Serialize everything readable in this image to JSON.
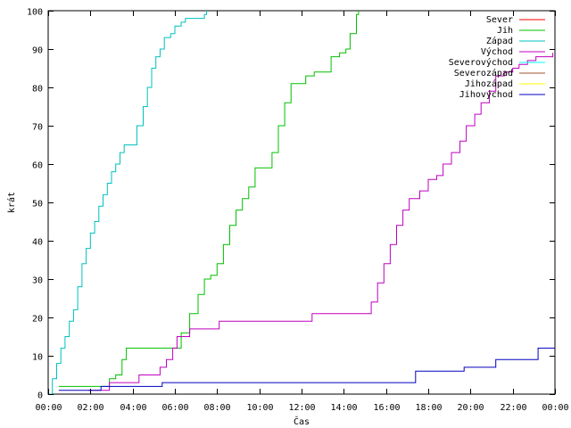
{
  "chart_data": {
    "type": "line",
    "title": "",
    "xlabel": "Čas",
    "ylabel": "krát",
    "xlim": [
      0,
      24
    ],
    "ylim": [
      0,
      100
    ],
    "x_ticks": [
      {
        "value": 0,
        "label": "00:00"
      },
      {
        "value": 2,
        "label": "02:00"
      },
      {
        "value": 4,
        "label": "04:00"
      },
      {
        "value": 6,
        "label": "06:00"
      },
      {
        "value": 8,
        "label": "08:00"
      },
      {
        "value": 10,
        "label": "10:00"
      },
      {
        "value": 12,
        "label": "12:00"
      },
      {
        "value": 14,
        "label": "14:00"
      },
      {
        "value": 16,
        "label": "16:00"
      },
      {
        "value": 18,
        "label": "18:00"
      },
      {
        "value": 20,
        "label": "20:00"
      },
      {
        "value": 22,
        "label": "22:00"
      },
      {
        "value": 24,
        "label": "00:00"
      }
    ],
    "y_ticks": [
      0,
      10,
      20,
      30,
      40,
      50,
      60,
      70,
      80,
      90,
      100
    ],
    "grid": false,
    "legend_position": "top-right",
    "series": [
      {
        "name": "Sever",
        "color": "#ff0000",
        "points": []
      },
      {
        "name": "Jih",
        "color": "#00c000",
        "points": [
          [
            0.5,
            2
          ],
          [
            2.7,
            2
          ],
          [
            2.9,
            4
          ],
          [
            3.2,
            5
          ],
          [
            3.5,
            9
          ],
          [
            3.7,
            12
          ],
          [
            5.6,
            12
          ],
          [
            6.0,
            12
          ],
          [
            6.3,
            16
          ],
          [
            6.7,
            21
          ],
          [
            7.1,
            26
          ],
          [
            7.4,
            30
          ],
          [
            7.7,
            31
          ],
          [
            8.0,
            34
          ],
          [
            8.3,
            39
          ],
          [
            8.6,
            44
          ],
          [
            8.9,
            48
          ],
          [
            9.2,
            51
          ],
          [
            9.5,
            54
          ],
          [
            9.8,
            59
          ],
          [
            10.4,
            59
          ],
          [
            10.6,
            63
          ],
          [
            10.9,
            70
          ],
          [
            11.2,
            76
          ],
          [
            11.5,
            81
          ],
          [
            11.9,
            81
          ],
          [
            12.2,
            83
          ],
          [
            12.6,
            84
          ],
          [
            13.0,
            84
          ],
          [
            13.4,
            88
          ],
          [
            13.8,
            89
          ],
          [
            14.1,
            90
          ],
          [
            14.3,
            94
          ],
          [
            14.6,
            99
          ],
          [
            14.7,
            100
          ]
        ]
      },
      {
        "name": "Západ",
        "color": "#00c0c0",
        "points": [
          [
            0.0,
            0
          ],
          [
            0.2,
            4
          ],
          [
            0.4,
            8
          ],
          [
            0.6,
            12
          ],
          [
            0.8,
            15
          ],
          [
            1.0,
            19
          ],
          [
            1.2,
            22
          ],
          [
            1.4,
            28
          ],
          [
            1.6,
            34
          ],
          [
            1.8,
            38
          ],
          [
            2.0,
            42
          ],
          [
            2.2,
            45
          ],
          [
            2.4,
            49
          ],
          [
            2.6,
            52
          ],
          [
            2.8,
            55
          ],
          [
            3.0,
            58
          ],
          [
            3.2,
            60
          ],
          [
            3.4,
            63
          ],
          [
            3.6,
            65
          ],
          [
            3.9,
            65
          ],
          [
            4.2,
            70
          ],
          [
            4.5,
            75
          ],
          [
            4.7,
            80
          ],
          [
            4.9,
            85
          ],
          [
            5.1,
            88
          ],
          [
            5.3,
            90
          ],
          [
            5.5,
            93
          ],
          [
            5.8,
            94
          ],
          [
            6.0,
            96
          ],
          [
            6.3,
            97
          ],
          [
            6.5,
            98
          ],
          [
            7.2,
            98
          ],
          [
            7.4,
            99
          ],
          [
            7.5,
            100
          ]
        ]
      },
      {
        "name": "Východ",
        "color": "#c000c0",
        "points": [
          [
            1.9,
            1
          ],
          [
            2.9,
            2
          ],
          [
            2.9,
            3
          ],
          [
            4.0,
            3
          ],
          [
            4.3,
            5
          ],
          [
            5.1,
            5
          ],
          [
            5.3,
            7
          ],
          [
            5.6,
            9
          ],
          [
            5.9,
            12
          ],
          [
            6.1,
            15
          ],
          [
            6.4,
            15
          ],
          [
            6.7,
            17
          ],
          [
            7.8,
            17
          ],
          [
            8.1,
            19
          ],
          [
            12.4,
            19
          ],
          [
            12.5,
            21
          ],
          [
            15.0,
            21
          ],
          [
            15.3,
            24
          ],
          [
            15.6,
            29
          ],
          [
            15.9,
            34
          ],
          [
            16.2,
            39
          ],
          [
            16.5,
            44
          ],
          [
            16.8,
            48
          ],
          [
            17.1,
            51
          ],
          [
            17.6,
            53
          ],
          [
            18.0,
            56
          ],
          [
            18.4,
            57
          ],
          [
            18.7,
            60
          ],
          [
            19.1,
            63
          ],
          [
            19.5,
            66
          ],
          [
            19.8,
            70
          ],
          [
            20.2,
            73
          ],
          [
            20.5,
            76
          ],
          [
            20.9,
            79
          ],
          [
            21.2,
            83
          ],
          [
            21.6,
            84
          ],
          [
            22.0,
            85
          ],
          [
            22.3,
            86
          ],
          [
            22.7,
            87
          ],
          [
            23.1,
            88
          ],
          [
            23.5,
            88
          ],
          [
            23.9,
            89
          ]
        ]
      },
      {
        "name": "Severovýchod",
        "color": "#00ffff",
        "points": []
      },
      {
        "name": "Severozápad",
        "color": "#a0522d",
        "points": []
      },
      {
        "name": "Jihozápad",
        "color": "#ffff00",
        "points": []
      },
      {
        "name": "Jihovýchod",
        "color": "#0000c0",
        "points": [
          [
            0.5,
            1
          ],
          [
            2.3,
            1
          ],
          [
            2.5,
            2
          ],
          [
            5.2,
            2
          ],
          [
            5.4,
            3
          ],
          [
            17.2,
            3
          ],
          [
            17.4,
            6
          ],
          [
            19.5,
            6
          ],
          [
            19.7,
            7
          ],
          [
            21.0,
            7
          ],
          [
            21.2,
            9
          ],
          [
            23.0,
            9
          ],
          [
            23.2,
            12
          ],
          [
            24.0,
            12
          ]
        ]
      }
    ]
  }
}
